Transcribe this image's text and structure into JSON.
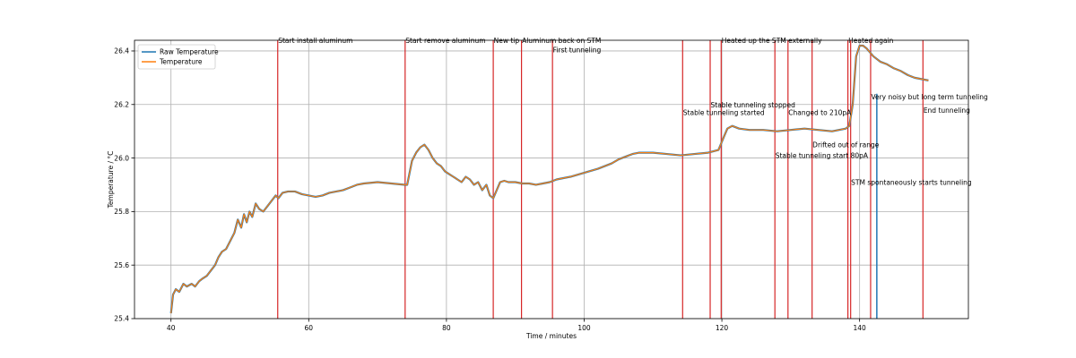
{
  "chart_data": {
    "type": "line",
    "title": "",
    "xlabel": "Time / minutes",
    "ylabel": "Temperature / °C",
    "xlim": [
      34.7,
      155.8
    ],
    "ylim": [
      25.4,
      26.44
    ],
    "xticks": [
      "40",
      "60",
      "80",
      "100",
      "120",
      "140"
    ],
    "yticks": [
      "25.4",
      "25.6",
      "25.8",
      "26.0",
      "26.2",
      "26.4"
    ],
    "grid": true,
    "legend_position": "top-left",
    "series": [
      {
        "name": "Raw Temperature",
        "color": "#1f77b4",
        "x": [
          40.0,
          40.3,
          40.7,
          41.2,
          41.8,
          42.3,
          43.0,
          43.5,
          44.1,
          44.6,
          45.2,
          45.8,
          46.4,
          46.9,
          47.4,
          48.0,
          48.6,
          49.2,
          49.7,
          50.2,
          50.6,
          51.0,
          51.4,
          51.8,
          52.3,
          52.8,
          53.4,
          54.0,
          54.6,
          55.2,
          55.6,
          56.2,
          57.0,
          58.0,
          59.0,
          60.0,
          61.0,
          62.0,
          63.0,
          64.0,
          65.0,
          66.0,
          67.0,
          68.0,
          70.0,
          72.0,
          74.0,
          74.3,
          75.0,
          75.6,
          76.2,
          76.8,
          77.4,
          78.0,
          78.6,
          79.2,
          79.8,
          80.4,
          81.0,
          81.6,
          82.2,
          82.8,
          83.4,
          84.0,
          84.6,
          85.2,
          85.8,
          86.3,
          86.8,
          87.3,
          87.8,
          88.4,
          89.0,
          90.0,
          91.0,
          92.0,
          93.0,
          94.0,
          95.0,
          96.0,
          98.0,
          100.0,
          102.0,
          104.0,
          105.0,
          106.0,
          107.0,
          108.0,
          110.0,
          112.0,
          114.0,
          116.0,
          118.0,
          119.5,
          120.3,
          120.8,
          121.5,
          122.5,
          124.0,
          126.0,
          128.0,
          130.0,
          132.0,
          134.0,
          136.0,
          137.0,
          138.0,
          138.5,
          139.0,
          139.5,
          140.0,
          140.5,
          141.0,
          142.0,
          143.0,
          144.0,
          145.0,
          146.0,
          147.0,
          148.0,
          149.0,
          150.0
        ],
        "y": [
          25.42,
          25.49,
          25.51,
          25.5,
          25.53,
          25.52,
          25.53,
          25.52,
          25.54,
          25.55,
          25.56,
          25.58,
          25.6,
          25.63,
          25.65,
          25.66,
          25.69,
          25.72,
          25.77,
          25.74,
          25.79,
          25.76,
          25.8,
          25.78,
          25.83,
          25.81,
          25.8,
          25.82,
          25.84,
          25.86,
          25.85,
          25.87,
          25.875,
          25.875,
          25.865,
          25.86,
          25.855,
          25.86,
          25.87,
          25.875,
          25.88,
          25.89,
          25.9,
          25.905,
          25.91,
          25.905,
          25.9,
          25.9,
          25.99,
          26.02,
          26.04,
          26.05,
          26.03,
          26.0,
          25.98,
          25.97,
          25.95,
          25.94,
          25.93,
          25.92,
          25.91,
          25.93,
          25.92,
          25.9,
          25.91,
          25.88,
          25.9,
          25.86,
          25.85,
          25.88,
          25.91,
          25.915,
          25.91,
          25.91,
          25.905,
          25.905,
          25.9,
          25.905,
          25.91,
          25.92,
          25.93,
          25.945,
          25.96,
          25.98,
          25.995,
          26.005,
          26.015,
          26.02,
          26.02,
          26.015,
          26.01,
          26.015,
          26.02,
          26.03,
          26.08,
          26.11,
          26.12,
          26.11,
          26.105,
          26.105,
          26.1,
          26.105,
          26.11,
          26.105,
          26.1,
          26.105,
          26.11,
          26.12,
          26.2,
          26.38,
          26.42,
          26.42,
          26.41,
          26.38,
          26.36,
          26.35,
          26.335,
          26.325,
          26.31,
          26.3,
          26.295,
          26.29
        ]
      },
      {
        "name": "Temperature",
        "color": "#ff7f0e",
        "x": [
          40.0,
          40.3,
          40.7,
          41.2,
          41.8,
          42.3,
          43.0,
          43.5,
          44.1,
          44.6,
          45.2,
          45.8,
          46.4,
          46.9,
          47.4,
          48.0,
          48.6,
          49.2,
          49.7,
          50.2,
          50.6,
          51.0,
          51.4,
          51.8,
          52.3,
          52.8,
          53.4,
          54.0,
          54.6,
          55.2,
          55.6,
          56.2,
          57.0,
          58.0,
          59.0,
          60.0,
          61.0,
          62.0,
          63.0,
          64.0,
          65.0,
          66.0,
          67.0,
          68.0,
          70.0,
          72.0,
          74.0,
          74.3,
          75.0,
          75.6,
          76.2,
          76.8,
          77.4,
          78.0,
          78.6,
          79.2,
          79.8,
          80.4,
          81.0,
          81.6,
          82.2,
          82.8,
          83.4,
          84.0,
          84.6,
          85.2,
          85.8,
          86.3,
          86.8,
          87.3,
          87.8,
          88.4,
          89.0,
          90.0,
          91.0,
          92.0,
          93.0,
          94.0,
          95.0,
          96.0,
          98.0,
          100.0,
          102.0,
          104.0,
          105.0,
          106.0,
          107.0,
          108.0,
          110.0,
          112.0,
          114.0,
          116.0,
          118.0,
          119.5,
          120.3,
          120.8,
          121.5,
          122.5,
          124.0,
          126.0,
          128.0,
          130.0,
          132.0,
          134.0,
          136.0,
          137.0,
          138.0,
          138.5,
          139.0,
          139.5,
          140.0,
          140.5,
          141.0,
          142.0,
          143.0,
          144.0,
          145.0,
          146.0,
          147.0,
          148.0,
          149.0,
          150.0
        ],
        "y": [
          25.42,
          25.49,
          25.51,
          25.5,
          25.53,
          25.52,
          25.53,
          25.52,
          25.54,
          25.55,
          25.56,
          25.58,
          25.6,
          25.63,
          25.65,
          25.66,
          25.69,
          25.72,
          25.77,
          25.74,
          25.79,
          25.76,
          25.8,
          25.78,
          25.83,
          25.81,
          25.8,
          25.82,
          25.84,
          25.86,
          25.85,
          25.87,
          25.875,
          25.875,
          25.865,
          25.86,
          25.855,
          25.86,
          25.87,
          25.875,
          25.88,
          25.89,
          25.9,
          25.905,
          25.91,
          25.905,
          25.9,
          25.9,
          25.99,
          26.02,
          26.04,
          26.05,
          26.03,
          26.0,
          25.98,
          25.97,
          25.95,
          25.94,
          25.93,
          25.92,
          25.91,
          25.93,
          25.92,
          25.9,
          25.91,
          25.88,
          25.9,
          25.86,
          25.85,
          25.88,
          25.91,
          25.915,
          25.91,
          25.91,
          25.905,
          25.905,
          25.9,
          25.905,
          25.91,
          25.92,
          25.93,
          25.945,
          25.96,
          25.98,
          25.995,
          26.005,
          26.015,
          26.02,
          26.02,
          26.015,
          26.01,
          26.015,
          26.02,
          26.03,
          26.08,
          26.11,
          26.12,
          26.11,
          26.105,
          26.105,
          26.1,
          26.105,
          26.11,
          26.105,
          26.1,
          26.105,
          26.11,
          26.12,
          26.2,
          26.38,
          26.42,
          26.42,
          26.41,
          26.38,
          26.36,
          26.35,
          26.335,
          26.325,
          26.31,
          26.3,
          26.295,
          26.29
        ]
      }
    ],
    "event_lines": [
      {
        "x": 55.5,
        "label": "Start install aluminum",
        "label_y": 26.44
      },
      {
        "x": 74.0,
        "label": "Start remove aluminum",
        "label_y": 26.44
      },
      {
        "x": 86.8,
        "label": "New tip",
        "label_y": 26.44
      },
      {
        "x": 90.9,
        "label": "Aluminum back on STM",
        "label_y": 26.44
      },
      {
        "x": 95.4,
        "label": "First tunneling",
        "label_y": 26.405
      },
      {
        "x": 114.3,
        "label": "Stable tunneling started",
        "label_y": 26.17
      },
      {
        "x": 118.3,
        "label": "Stable tunneling stopped",
        "label_y": 26.2
      },
      {
        "x": 119.9,
        "label": "Heated up the STM externally",
        "label_y": 26.44
      },
      {
        "x": 127.7,
        "label": "Stable tunneling start 80pA",
        "label_y": 26.01
      },
      {
        "x": 129.6,
        "label": "Changed to 210pA",
        "label_y": 26.17
      },
      {
        "x": 133.1,
        "label": "Drifted out of range",
        "label_y": 26.05
      },
      {
        "x": 138.3,
        "label": "Heated again",
        "label_y": 26.44
      },
      {
        "x": 138.7,
        "label": "STM spontaneously starts tunneling",
        "label_y": 25.91
      },
      {
        "x": 141.6,
        "label": "Very noisy but long term tunneling",
        "label_y": 26.23
      },
      {
        "x": 149.2,
        "label": "End tunneling",
        "label_y": 26.18
      }
    ],
    "event_line_color": "#d62728",
    "blue_marker_x": 142.5
  }
}
